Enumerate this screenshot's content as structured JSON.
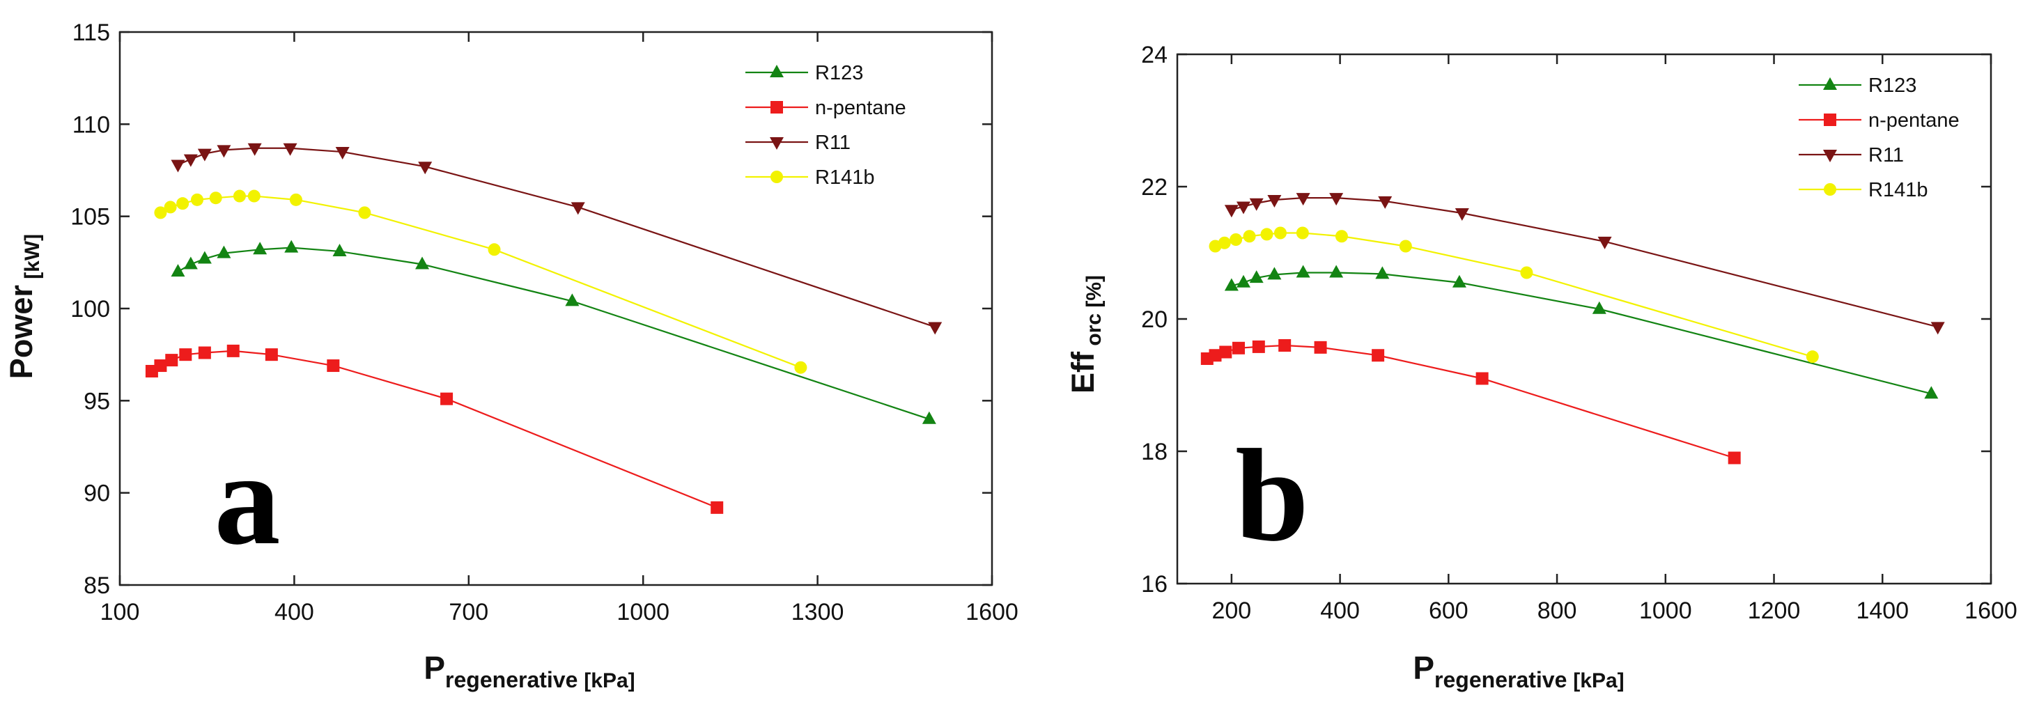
{
  "chart_data": [
    {
      "type": "line",
      "panel_label": "a",
      "ylabel": "Power",
      "ylabel_subscript": "[kW]",
      "xlabel": "P",
      "xlabel_subscript": "regenerative",
      "xlabel_unit": "[kPa]",
      "xlim": [
        100,
        1600
      ],
      "ylim": [
        85,
        115
      ],
      "xticks": [
        100,
        400,
        700,
        1000,
        1300,
        1600
      ],
      "yticks": [
        85,
        90,
        95,
        100,
        105,
        110,
        115
      ],
      "legend_position": "top-right",
      "series": [
        {
          "name": "R123",
          "color": "#138413",
          "marker": "triangle-up",
          "x": [
            200,
            222,
            246,
            279,
            341,
            395,
            478,
            620,
            878,
            1492
          ],
          "y": [
            102.0,
            102.4,
            102.7,
            103.0,
            103.2,
            103.3,
            103.1,
            102.4,
            100.4,
            94.0
          ]
        },
        {
          "name": "n-pentane",
          "color": "#ed1c1c",
          "marker": "square",
          "x": [
            155,
            170,
            189,
            213,
            246,
            295,
            361,
            467,
            662,
            1127
          ],
          "y": [
            96.6,
            96.9,
            97.2,
            97.5,
            97.6,
            97.7,
            97.5,
            96.9,
            95.1,
            89.2
          ]
        },
        {
          "name": "R11",
          "color": "#7a1414",
          "marker": "triangle-down",
          "x": [
            200,
            222,
            246,
            279,
            332,
            393,
            483,
            625,
            888,
            1502
          ],
          "y": [
            107.8,
            108.1,
            108.4,
            108.6,
            108.7,
            108.7,
            108.5,
            107.7,
            105.5,
            99.0
          ]
        },
        {
          "name": "R141b",
          "color": "#f2f200",
          "marker": "circle",
          "x": [
            170,
            187,
            208,
            233,
            265,
            306,
            331,
            403,
            521,
            744,
            1271
          ],
          "y": [
            105.2,
            105.5,
            105.7,
            105.9,
            106.0,
            106.1,
            106.1,
            105.9,
            105.2,
            103.2,
            96.8
          ]
        }
      ]
    },
    {
      "type": "line",
      "panel_label": "b",
      "ylabel": "Eff",
      "ylabel_subscript": "orc",
      "ylabel_unit": "[%]",
      "xlabel": "P",
      "xlabel_subscript": "regenerative",
      "xlabel_unit": "[kPa]",
      "xlim": [
        100,
        1600
      ],
      "ylim": [
        16,
        24
      ],
      "xticks": [
        200,
        400,
        600,
        800,
        1000,
        1200,
        1400,
        1600
      ],
      "yticks": [
        16,
        18,
        20,
        22,
        24
      ],
      "legend_position": "top-right",
      "series": [
        {
          "name": "R123",
          "color": "#138413",
          "marker": "triangle-up",
          "x": [
            200,
            222,
            246,
            279,
            332,
            393,
            478,
            620,
            878,
            1490
          ],
          "y": [
            20.5,
            20.55,
            20.62,
            20.67,
            20.7,
            20.7,
            20.68,
            20.55,
            20.15,
            18.87
          ]
        },
        {
          "name": "n-pentane",
          "color": "#ed1c1c",
          "marker": "square",
          "x": [
            155,
            170,
            189,
            213,
            250,
            298,
            364,
            470,
            662,
            1127
          ],
          "y": [
            19.4,
            19.45,
            19.5,
            19.56,
            19.58,
            19.6,
            19.57,
            19.45,
            19.1,
            17.9
          ]
        },
        {
          "name": "R11",
          "color": "#7a1414",
          "marker": "triangle-down",
          "x": [
            200,
            222,
            246,
            279,
            332,
            393,
            483,
            625,
            888,
            1502
          ],
          "y": [
            21.65,
            21.7,
            21.75,
            21.8,
            21.83,
            21.83,
            21.78,
            21.6,
            21.17,
            19.88
          ]
        },
        {
          "name": "R141b",
          "color": "#f2f200",
          "marker": "circle",
          "x": [
            170,
            187,
            208,
            233,
            265,
            290,
            331,
            403,
            521,
            744,
            1271
          ],
          "y": [
            21.1,
            21.15,
            21.2,
            21.25,
            21.28,
            21.3,
            21.3,
            21.25,
            21.1,
            20.7,
            19.43
          ]
        }
      ]
    }
  ]
}
